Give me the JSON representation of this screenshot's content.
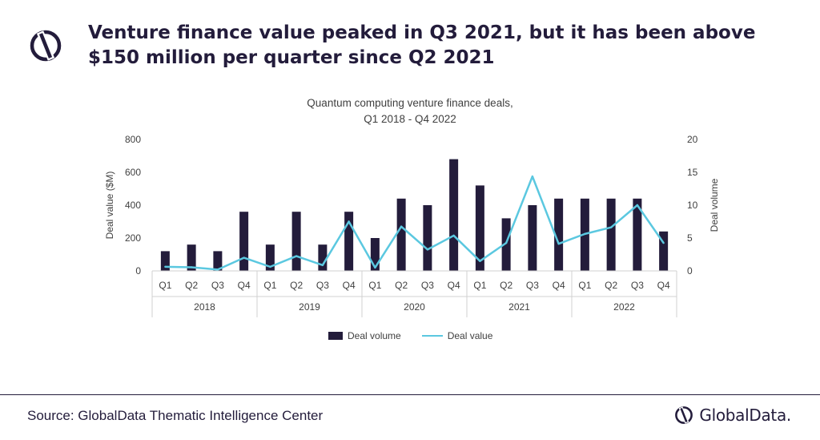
{
  "header": {
    "headline": "Venture finance value peaked in Q3 2021, but it has been above $150 million per quarter since Q2 2021"
  },
  "footer": {
    "source": "Source: GlobalData Thematic Intelligence Center",
    "brand": "GlobalData."
  },
  "colors": {
    "bar": "#231c3b",
    "line": "#5bc8e0",
    "brand": "#231c3b"
  },
  "icons": {
    "logo": "globaldata-logo-icon"
  },
  "chart_data": {
    "type": "bar",
    "title": "Quantum computing venture finance deals,",
    "subtitle": "Q1 2018 - Q4 2022",
    "ylabel": "Deal value ($M)",
    "y2label": "Deal volume",
    "ylim": [
      0,
      800
    ],
    "y2lim": [
      0,
      20
    ],
    "yticks": [
      "800",
      "600",
      "400",
      "200",
      "0"
    ],
    "y2ticks": [
      "20",
      "15",
      "10",
      "5",
      "0"
    ],
    "categories": [
      "Q1",
      "Q2",
      "Q3",
      "Q4",
      "Q1",
      "Q2",
      "Q3",
      "Q4",
      "Q1",
      "Q2",
      "Q3",
      "Q4",
      "Q1",
      "Q2",
      "Q3",
      "Q4",
      "Q1",
      "Q2",
      "Q3",
      "Q4"
    ],
    "groups": [
      "2018",
      "2019",
      "2020",
      "2021",
      "2022"
    ],
    "legend": "bottom-center",
    "series": [
      {
        "name": "Deal volume",
        "kind": "bar",
        "axis": "right",
        "values": [
          3,
          4,
          3,
          9,
          4,
          9,
          4,
          9,
          5,
          11,
          10,
          17,
          13,
          8,
          10,
          11,
          11,
          11,
          11,
          6
        ]
      },
      {
        "name": "Deal value",
        "kind": "line",
        "axis": "left",
        "values": [
          25,
          22,
          8,
          80,
          25,
          90,
          35,
          300,
          20,
          270,
          130,
          215,
          60,
          170,
          575,
          165,
          225,
          265,
          400,
          170
        ]
      }
    ]
  }
}
